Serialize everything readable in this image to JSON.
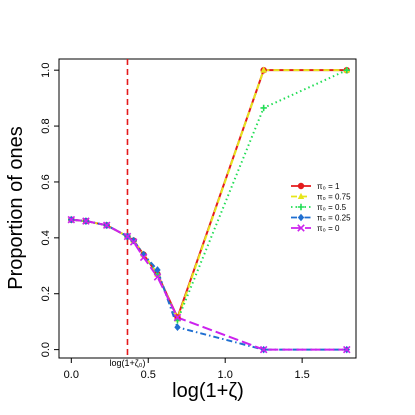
{
  "chart_data": {
    "type": "line",
    "xlabel": "log(1+ζ)",
    "ylabel": "Proportion of ones",
    "xlim": [
      -0.08,
      1.85
    ],
    "ylim": [
      -0.03,
      1.04
    ],
    "x_ticks": [
      0.0,
      0.5,
      1.0,
      1.5
    ],
    "x_tick_labels": [
      "0.0",
      "0.5",
      "1.0",
      "1.5"
    ],
    "y_ticks": [
      0.0,
      0.2,
      0.4,
      0.6,
      0.8,
      1.0
    ],
    "y_tick_labels": [
      "0.0",
      "0.2",
      "0.4",
      "0.6",
      "0.8",
      "1.0"
    ],
    "vline": {
      "x": 0.365,
      "color": "#e41a1c",
      "label": "log(1+ζ₀)"
    },
    "legend_position": "right",
    "x": [
      0.0,
      0.095,
      0.23,
      0.365,
      0.405,
      0.47,
      0.56,
      0.69,
      1.25,
      1.79
    ],
    "series": [
      {
        "name": "π₀ = 1",
        "color": "#e41a1c",
        "marker": "circle",
        "dash": "solid",
        "values": [
          0.465,
          0.46,
          0.445,
          0.405,
          0.39,
          0.34,
          0.27,
          0.115,
          1.0,
          1.0
        ]
      },
      {
        "name": "π₀ = 0.75",
        "color": "#e6e61a",
        "marker": "triangle",
        "dash": "6,4",
        "values": [
          0.465,
          0.46,
          0.445,
          0.405,
          0.39,
          0.34,
          0.27,
          0.11,
          1.0,
          1.0
        ]
      },
      {
        "name": "π₀ = 0.5",
        "color": "#22dd55",
        "marker": "plus",
        "dash": "1.5,3",
        "values": [
          0.465,
          0.46,
          0.445,
          0.405,
          0.39,
          0.34,
          0.27,
          0.105,
          0.865,
          1.0
        ]
      },
      {
        "name": "π₀ = 0.25",
        "color": "#1f6fd1",
        "marker": "diamond",
        "dash": "6,3,1.5,3",
        "values": [
          0.465,
          0.46,
          0.445,
          0.405,
          0.39,
          0.34,
          0.285,
          0.08,
          0.0,
          0.0
        ]
      },
      {
        "name": "π₀ = 0",
        "color": "#cc22ee",
        "marker": "x",
        "dash": "10,4",
        "values": [
          0.465,
          0.46,
          0.445,
          0.405,
          0.385,
          0.33,
          0.26,
          0.115,
          0.0,
          0.0
        ]
      }
    ]
  }
}
